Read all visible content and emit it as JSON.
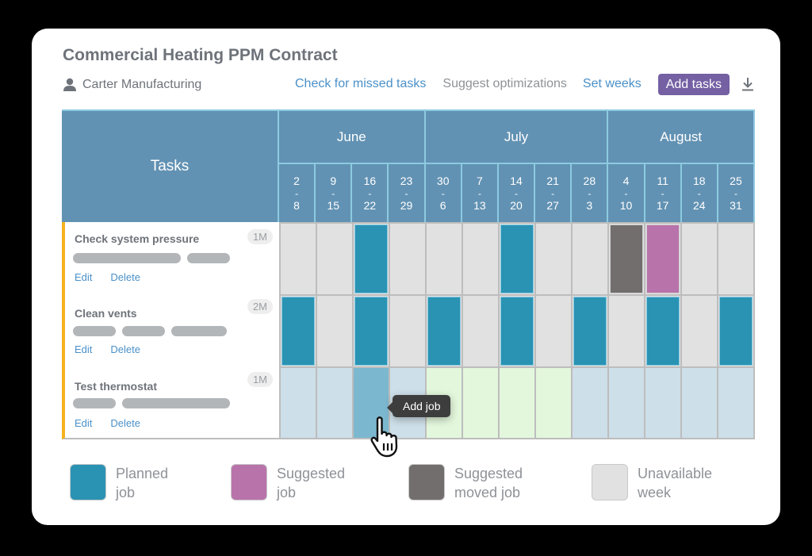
{
  "header": {
    "title": "Commercial Heating PPM Contract",
    "client": "Carter Manufacturing",
    "client_icon": "person-icon",
    "actions": {
      "check_missed": "Check for missed tasks",
      "suggest_optimizations": "Suggest optimizations",
      "set_weeks": "Set weeks",
      "add_tasks": "Add tasks",
      "download_icon": "download-icon"
    }
  },
  "grid": {
    "tasks_header": "Tasks",
    "months": [
      {
        "label": "June",
        "weeks": 4
      },
      {
        "label": "July",
        "weeks": 5
      },
      {
        "label": "August",
        "weeks": 4
      }
    ],
    "weeks": [
      {
        "start": "2",
        "end": "8"
      },
      {
        "start": "9",
        "end": "15"
      },
      {
        "start": "16",
        "end": "22"
      },
      {
        "start": "23",
        "end": "29"
      },
      {
        "start": "30",
        "end": "6"
      },
      {
        "start": "7",
        "end": "13"
      },
      {
        "start": "14",
        "end": "20"
      },
      {
        "start": "21",
        "end": "27"
      },
      {
        "start": "28",
        "end": "3"
      },
      {
        "start": "4",
        "end": "10"
      },
      {
        "start": "11",
        "end": "17"
      },
      {
        "start": "18",
        "end": "24"
      },
      {
        "start": "25",
        "end": "31"
      }
    ],
    "week_separator": "-",
    "tasks": [
      {
        "name": "Check system pressure",
        "frequency": "1M",
        "tag_widths": [
          136,
          54
        ],
        "edit": "Edit",
        "delete": "Delete",
        "cells": [
          "unavailable",
          "unavailable",
          "planned",
          "unavailable",
          "unavailable",
          "unavailable",
          "planned",
          "unavailable",
          "unavailable",
          "moved",
          "suggested",
          "unavailable",
          "unavailable"
        ]
      },
      {
        "name": "Clean vents",
        "frequency": "2M",
        "tag_widths": [
          54,
          54,
          70
        ],
        "edit": "Edit",
        "delete": "Delete",
        "cells": [
          "planned",
          "unavailable",
          "planned",
          "unavailable",
          "planned",
          "unavailable",
          "planned",
          "unavailable",
          "planned",
          "unavailable",
          "planned",
          "unavailable",
          "planned"
        ]
      },
      {
        "name": "Test thermostat",
        "frequency": "1M",
        "tag_widths": [
          54,
          136
        ],
        "edit": "Edit",
        "delete": "Delete",
        "cells": [
          "available",
          "available",
          "hover",
          "available",
          "optimal",
          "optimal",
          "optimal",
          "optimal",
          "available",
          "available",
          "available",
          "available",
          "available"
        ]
      }
    ],
    "tooltip": "Add job"
  },
  "colors": {
    "planned": "#2a93b4",
    "suggested": "#b973ab",
    "moved": "#726e6d",
    "unavailable": "#e1e1e1",
    "available": "#cddfe9",
    "optimal": "#e3f7dc",
    "hover": "#7bb8cf",
    "header_bg": "#6292b3",
    "accent_button": "#7460a3",
    "task_marker": "#f5b21f"
  },
  "legend": [
    {
      "key": "planned",
      "color": "#2a93b4",
      "line1": "Planned",
      "line2": "job"
    },
    {
      "key": "suggested",
      "color": "#b973ab",
      "line1": "Suggested",
      "line2": "job"
    },
    {
      "key": "moved",
      "color": "#726e6d",
      "line1": "Suggested",
      "line2": "moved job"
    },
    {
      "key": "unavailable",
      "color": "#e1e1e1",
      "line1": "Unavailable",
      "line2": "week"
    }
  ]
}
